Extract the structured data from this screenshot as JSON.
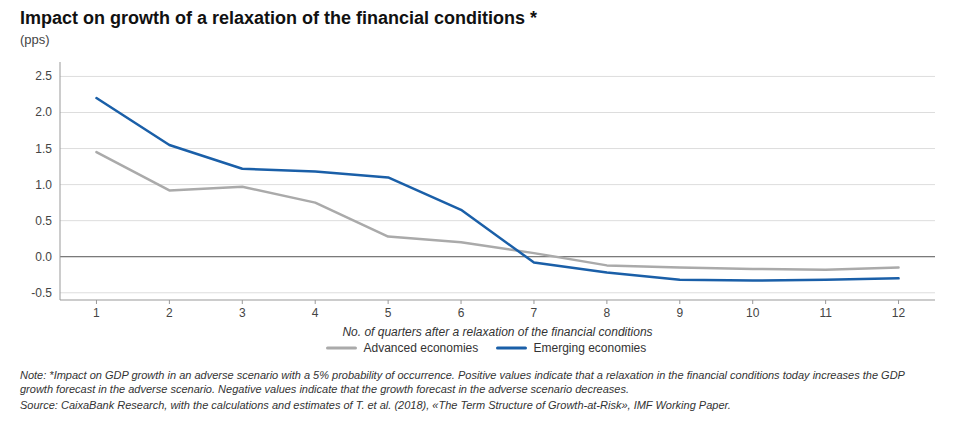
{
  "chart_data": {
    "type": "line",
    "title": "Impact on growth of a relaxation of the financial conditions *",
    "subtitle": "(pps)",
    "x_label": "No. of quarters after a relaxation of the financial conditions",
    "x": [
      1,
      2,
      3,
      4,
      5,
      6,
      7,
      8,
      9,
      10,
      11,
      12
    ],
    "series": [
      {
        "name": "Advanced economies",
        "color": "#aaaaaa",
        "values": [
          1.45,
          0.92,
          0.97,
          0.75,
          0.28,
          0.2,
          0.05,
          -0.12,
          -0.15,
          -0.17,
          -0.18,
          -0.15
        ]
      },
      {
        "name": "Emerging economies",
        "color": "#1a5fa8",
        "values": [
          2.2,
          1.55,
          1.22,
          1.18,
          1.1,
          0.65,
          -0.08,
          -0.22,
          -0.32,
          -0.33,
          -0.32,
          -0.3
        ]
      }
    ],
    "xlim": [
      0.5,
      12.5
    ],
    "xticks": [
      1,
      2,
      3,
      4,
      5,
      6,
      7,
      8,
      9,
      10,
      11,
      12
    ],
    "ylim": [
      -0.6,
      2.7
    ],
    "yticks": [
      -0.5,
      {
        "value": 0.0,
        "label": "0.0"
      },
      0.5,
      {
        "value": 1.0,
        "label": "1.0"
      },
      1.5,
      {
        "value": 2.0,
        "label": "2.0"
      },
      2.5
    ],
    "grid": true,
    "legend": "bottom",
    "annotations": [
      "Note: *Impact on GDP growth in an adverse scenario with a 5% probability of occurrence. Positive values indicate that a relaxation in the financial conditions today increases the GDP growth forecast in the adverse scenario. Negative values indicate that the growth forecast in the adverse scenario decreases.",
      "Source: CaixaBank Research, with the calculations and estimates of T. et al. (2018), «The Term Structure of Growth-at-Risk», IMF Working Paper."
    ]
  }
}
